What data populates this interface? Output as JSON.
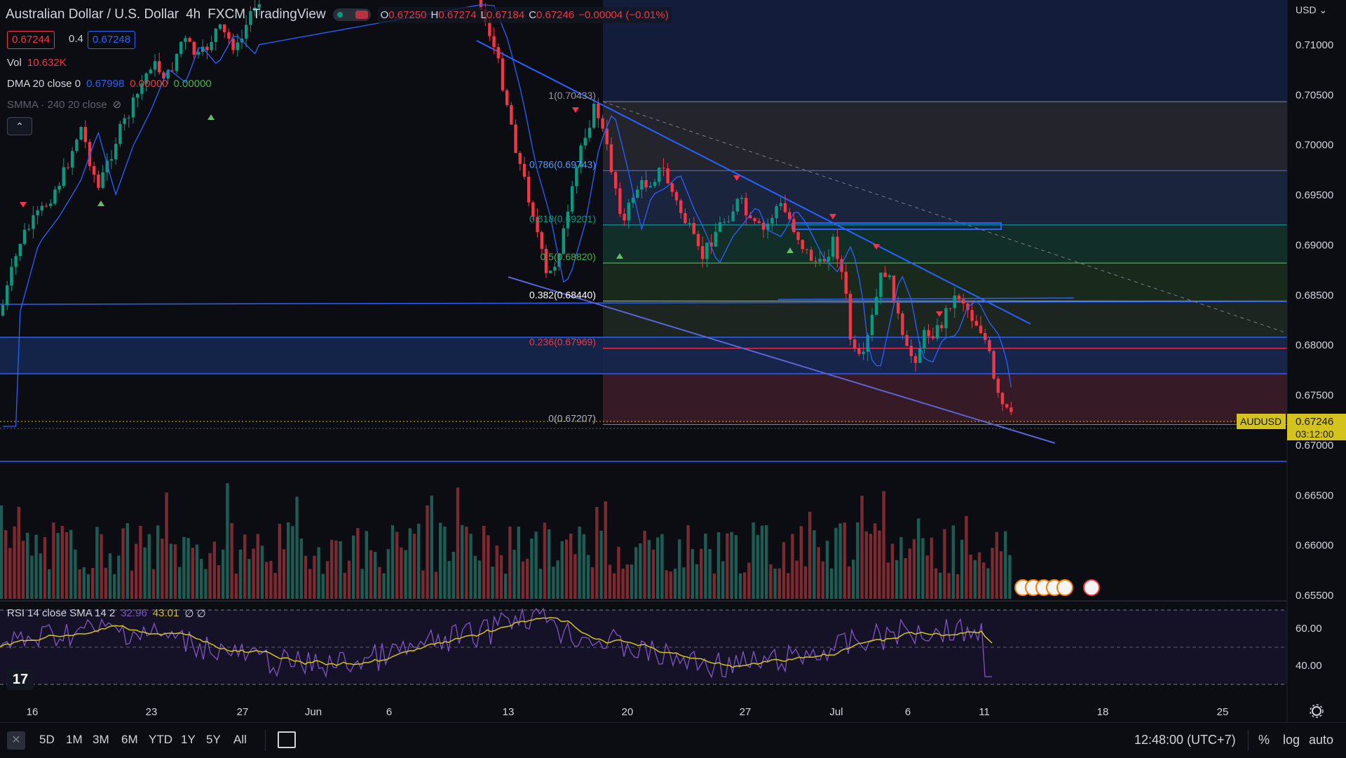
{
  "header": {
    "symbol_title": "Australian Dollar / U.S. Dollar",
    "interval": "4h",
    "exchange": "FXCM",
    "source": "TradingView",
    "ohlc": [
      {
        "k": "O",
        "v": "0.67250"
      },
      {
        "k": "H",
        "v": "0.67274"
      },
      {
        "k": "L",
        "v": "0.67184"
      },
      {
        "k": "C",
        "v": "0.67246"
      },
      {
        "k": "",
        "v": "−0.00004 (−0.01%)"
      }
    ],
    "sell_price": "0.67244",
    "spread": "0.4",
    "buy_price": "0.67248"
  },
  "indicators": {
    "vol_label": "Vol",
    "vol_value": "10.632K",
    "dma_label": "DMA 20 close 0",
    "dma_values": [
      "0.67998",
      "0.00000",
      "0.00000"
    ],
    "smma_label": "SMMA · 240 20 close",
    "collapse_icon": "chevron-up-icon"
  },
  "price_axis": {
    "currency_selector": "USD",
    "labels": [
      "0.71000",
      "0.70500",
      "0.70000",
      "0.69500",
      "0.69000",
      "0.68500",
      "0.68000",
      "0.67500",
      "0.67000",
      "0.66500",
      "0.66000",
      "0.65500"
    ],
    "last_symbol": "AUDUSD",
    "last_price": "0.67246",
    "countdown": "03:12:00"
  },
  "fib": {
    "levels": [
      {
        "label": "1(0.70433)",
        "price": 0.70433
      },
      {
        "label": "0.786(0.69743)",
        "price": 0.69743
      },
      {
        "label": "0.618(0.69201)",
        "price": 0.69201
      },
      {
        "label": "0.5(0.68820)",
        "price": 0.6882
      },
      {
        "label": "0.382(0.68440)",
        "price": 0.6844
      },
      {
        "label": "0.236(0.67969)",
        "price": 0.67969
      },
      {
        "label": "0(0.67207)",
        "price": 0.67207
      }
    ],
    "colors": {
      "level_1": "#787b86",
      "level_786": "#2962ff",
      "level_618": "#089981",
      "level_05": "#4caf50",
      "level_382": "#ffffff",
      "level_236": "#f23645",
      "level_0": "#787b86"
    }
  },
  "rsi": {
    "label": "RSI 14 close SMA 14 2",
    "value": "32.96",
    "sma_value": "43.01",
    "extra": "∅ ∅",
    "axis_labels": [
      "60.00",
      "40.00"
    ]
  },
  "time_axis": {
    "labels": [
      "16",
      "23",
      "27",
      "Jun",
      "6",
      "13",
      "20",
      "27",
      "Jul",
      "6",
      "11",
      "18",
      "25"
    ]
  },
  "bottom_bar": {
    "ranges": [
      "5D",
      "1M",
      "3M",
      "6M",
      "YTD",
      "1Y",
      "5Y",
      "All"
    ],
    "clock": "12:48:00 (UTC+7)",
    "percent": "%",
    "log": "log",
    "auto": "auto",
    "logo_text": "17"
  },
  "colors": {
    "bull": "#089981",
    "bear": "#f23645",
    "line": "#2962ff",
    "rsi": "#7e57c2",
    "rsi_sma": "#d4c21e",
    "background": "#0b0d13"
  }
}
